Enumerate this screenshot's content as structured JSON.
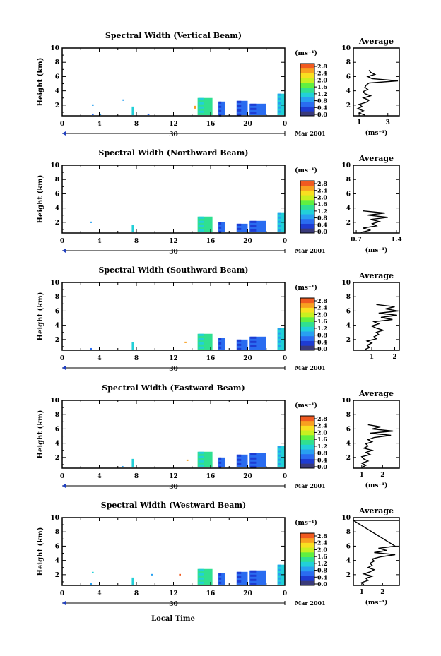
{
  "figure": {
    "xlabel": "Local Time",
    "date_label": "Mar 2001",
    "day_label": "30"
  },
  "colorbar": {
    "unit": "(ms⁻¹)",
    "tick_labels": [
      "0.0",
      "0.4",
      "0.8",
      "1.2",
      "1.6",
      "2.0",
      "2.4",
      "2.8"
    ],
    "colors": [
      "#3a3a7a",
      "#1e3cd2",
      "#2a6cf0",
      "#28a0f0",
      "#22d0d8",
      "#30e090",
      "#60f040",
      "#c8f020",
      "#f8e020",
      "#f8a020",
      "#f05a20"
    ]
  },
  "chart_data": [
    {
      "type": "heatmap",
      "title": "Spectral Width (Vertical Beam)",
      "ylabel": "Height (km)",
      "ylim": [
        0.5,
        10
      ],
      "yticks": [
        "2",
        "4",
        "6",
        "8",
        "10"
      ],
      "xlim": [
        0,
        24
      ],
      "xticks": [
        "0",
        "4",
        "8",
        "12",
        "16",
        "20",
        "0"
      ],
      "echoes": [
        {
          "t0": 3.2,
          "t1": 3.4,
          "h0": 0.6,
          "h1": 0.8,
          "level": 2
        },
        {
          "t0": 3.2,
          "t1": 3.4,
          "h0": 1.9,
          "h1": 2.1,
          "level": 3
        },
        {
          "t0": 4.0,
          "t1": 4.2,
          "h0": 0.6,
          "h1": 0.8,
          "level": 3
        },
        {
          "t0": 6.5,
          "t1": 6.7,
          "h0": 2.6,
          "h1": 2.8,
          "level": 3
        },
        {
          "t0": 7.5,
          "t1": 7.7,
          "h0": 0.6,
          "h1": 1.8,
          "level": 4
        },
        {
          "t0": 9.2,
          "t1": 9.4,
          "h0": 0.6,
          "h1": 0.8,
          "level": 2
        },
        {
          "t0": 14.2,
          "t1": 14.4,
          "h0": 1.5,
          "h1": 1.9,
          "level": 9
        },
        {
          "t0": 14.6,
          "t1": 16.2,
          "h0": 0.6,
          "h1": 3.0,
          "level": 5
        },
        {
          "t0": 16.8,
          "t1": 17.6,
          "h0": 0.6,
          "h1": 2.5,
          "level": 2
        },
        {
          "t0": 18.8,
          "t1": 20.0,
          "h0": 0.6,
          "h1": 2.6,
          "level": 2
        },
        {
          "t0": 20.2,
          "t1": 22.0,
          "h0": 0.6,
          "h1": 2.2,
          "level": 2
        },
        {
          "t0": 23.2,
          "t1": 24.0,
          "h0": 0.6,
          "h1": 3.6,
          "level": 4
        }
      ],
      "average": {
        "title": "Average",
        "xlabel": "(ms⁻¹)",
        "xlim": [
          0.6,
          3.8
        ],
        "xticks": [
          {
            "v": 1,
            "label": "1"
          },
          {
            "v": 3,
            "label": "3"
          }
        ],
        "yticks": [
          "2",
          "4",
          "6",
          "8",
          "10"
        ],
        "h": [
          0.6,
          0.9,
          1.2,
          1.5,
          1.8,
          2.1,
          2.4,
          2.7,
          3.0,
          3.3,
          3.6,
          3.9,
          4.2,
          4.5,
          4.8,
          5.1,
          5.4,
          5.7,
          6.0,
          6.3,
          6.6,
          6.9
        ],
        "v": [
          1.4,
          1.0,
          1.3,
          0.9,
          1.2,
          1.0,
          1.5,
          1.7,
          1.3,
          1.8,
          1.4,
          1.3,
          1.6,
          1.4,
          1.5,
          1.7,
          3.7,
          1.9,
          1.6,
          2.1,
          1.8,
          1.7
        ]
      }
    },
    {
      "type": "heatmap",
      "title": "Spectral Width (Northward Beam)",
      "ylabel": "Height (km)",
      "ylim": [
        0.5,
        10
      ],
      "yticks": [
        "2",
        "4",
        "6",
        "8",
        "10"
      ],
      "xlim": [
        0,
        24
      ],
      "xticks": [
        "0",
        "4",
        "8",
        "12",
        "16",
        "20",
        "0"
      ],
      "echoes": [
        {
          "t0": 3.0,
          "t1": 3.2,
          "h0": 1.9,
          "h1": 2.1,
          "level": 3
        },
        {
          "t0": 7.5,
          "t1": 7.7,
          "h0": 0.6,
          "h1": 1.6,
          "level": 4
        },
        {
          "t0": 14.6,
          "t1": 16.2,
          "h0": 0.6,
          "h1": 2.8,
          "level": 5
        },
        {
          "t0": 16.8,
          "t1": 17.6,
          "h0": 0.6,
          "h1": 2.0,
          "level": 2
        },
        {
          "t0": 18.8,
          "t1": 20.0,
          "h0": 0.6,
          "h1": 1.8,
          "level": 2
        },
        {
          "t0": 20.2,
          "t1": 22.0,
          "h0": 0.6,
          "h1": 2.2,
          "level": 2
        },
        {
          "t0": 23.2,
          "t1": 24.0,
          "h0": 0.6,
          "h1": 3.4,
          "level": 4
        }
      ],
      "average": {
        "title": "Average",
        "xlabel": "(ms⁻¹)",
        "xlim": [
          0.65,
          1.45
        ],
        "xticks": [
          {
            "v": 0.7,
            "label": "0.7"
          },
          {
            "v": 1.4,
            "label": "1.4"
          }
        ],
        "yticks": [
          "2",
          "4",
          "6",
          "8",
          "10"
        ],
        "h": [
          0.6,
          0.9,
          1.2,
          1.5,
          1.8,
          2.1,
          2.4,
          2.7,
          3.0,
          3.3,
          3.6
        ],
        "v": [
          0.78,
          0.95,
          0.82,
          1.05,
          0.98,
          1.1,
          0.95,
          1.25,
          0.9,
          1.2,
          0.82
        ]
      }
    },
    {
      "type": "heatmap",
      "title": "Spectral Width (Southward Beam)",
      "ylabel": "Height (km)",
      "ylim": [
        0.5,
        10
      ],
      "yticks": [
        "2",
        "4",
        "6",
        "8",
        "10"
      ],
      "xlim": [
        0,
        24
      ],
      "xticks": [
        "0",
        "4",
        "8",
        "12",
        "16",
        "20",
        "0"
      ],
      "echoes": [
        {
          "t0": 3.0,
          "t1": 3.2,
          "h0": 0.6,
          "h1": 0.8,
          "level": 2
        },
        {
          "t0": 7.5,
          "t1": 7.7,
          "h0": 0.6,
          "h1": 1.6,
          "level": 4
        },
        {
          "t0": 13.2,
          "t1": 13.4,
          "h0": 1.5,
          "h1": 1.7,
          "level": 9
        },
        {
          "t0": 14.6,
          "t1": 16.2,
          "h0": 0.6,
          "h1": 2.8,
          "level": 5
        },
        {
          "t0": 16.8,
          "t1": 17.6,
          "h0": 0.6,
          "h1": 2.2,
          "level": 2
        },
        {
          "t0": 18.8,
          "t1": 20.0,
          "h0": 0.6,
          "h1": 2.0,
          "level": 2
        },
        {
          "t0": 20.2,
          "t1": 22.0,
          "h0": 0.6,
          "h1": 2.4,
          "level": 2
        },
        {
          "t0": 23.2,
          "t1": 24.0,
          "h0": 0.6,
          "h1": 3.6,
          "level": 4
        }
      ],
      "average": {
        "title": "Average",
        "xlabel": "",
        "xlim": [
          0.2,
          2.2
        ],
        "xticks": [
          {
            "v": 1,
            "label": "1"
          },
          {
            "v": 2,
            "label": "2"
          }
        ],
        "yticks": [
          "2",
          "4",
          "6",
          "8",
          "10"
        ],
        "h": [
          0.6,
          0.9,
          1.2,
          1.5,
          1.8,
          2.1,
          2.4,
          2.7,
          3.0,
          3.3,
          3.6,
          3.9,
          4.2,
          4.5,
          4.8,
          5.1,
          5.4,
          5.7,
          6.0,
          6.3,
          6.6,
          6.9
        ],
        "v": [
          0.7,
          0.9,
          0.8,
          1.0,
          0.8,
          1.2,
          1.1,
          1.3,
          1.2,
          1.5,
          1.2,
          1.0,
          1.3,
          1.1,
          1.9,
          1.4,
          2.1,
          1.3,
          2.15,
          1.6,
          2.0,
          1.2
        ]
      }
    },
    {
      "type": "heatmap",
      "title": "Spectral Width (Eastward Beam)",
      "ylabel": "Height (km)",
      "ylim": [
        0.5,
        10
      ],
      "yticks": [
        "2",
        "4",
        "6",
        "8",
        "10"
      ],
      "xlim": [
        0,
        24
      ],
      "xticks": [
        "0",
        "4",
        "8",
        "12",
        "16",
        "20",
        "0"
      ],
      "echoes": [
        {
          "t0": 6.4,
          "t1": 6.6,
          "h0": 0.6,
          "h1": 0.8,
          "level": 3
        },
        {
          "t0": 7.5,
          "t1": 7.7,
          "h0": 0.6,
          "h1": 1.8,
          "level": 4
        },
        {
          "t0": 13.4,
          "t1": 13.6,
          "h0": 1.5,
          "h1": 1.7,
          "level": 9
        },
        {
          "t0": 14.6,
          "t1": 16.2,
          "h0": 0.6,
          "h1": 2.8,
          "level": 5
        },
        {
          "t0": 16.8,
          "t1": 17.6,
          "h0": 0.6,
          "h1": 2.0,
          "level": 2
        },
        {
          "t0": 18.8,
          "t1": 20.0,
          "h0": 0.6,
          "h1": 2.4,
          "level": 2
        },
        {
          "t0": 20.2,
          "t1": 22.0,
          "h0": 0.6,
          "h1": 2.6,
          "level": 2
        },
        {
          "t0": 23.2,
          "t1": 24.0,
          "h0": 0.6,
          "h1": 3.6,
          "level": 4
        }
      ],
      "average": {
        "title": "Average",
        "xlabel": "(ms⁻¹)",
        "xlim": [
          0.6,
          2.8
        ],
        "xticks": [
          {
            "v": 1,
            "label": "1"
          },
          {
            "v": 2,
            "label": "2"
          }
        ],
        "yticks": [
          "2",
          "4",
          "6",
          "8",
          "10"
        ],
        "h": [
          0.6,
          0.9,
          1.2,
          1.5,
          1.8,
          2.1,
          2.4,
          2.7,
          3.0,
          3.3,
          3.6,
          3.9,
          4.2,
          4.5,
          4.8,
          5.1,
          5.4,
          5.7,
          6.0,
          6.3,
          6.6
        ],
        "v": [
          1.0,
          1.2,
          1.0,
          1.3,
          1.1,
          1.0,
          1.4,
          1.2,
          1.5,
          1.1,
          1.3,
          1.2,
          1.5,
          1.3,
          1.6,
          2.4,
          1.4,
          2.5,
          1.5,
          1.9,
          1.3
        ]
      }
    },
    {
      "type": "heatmap",
      "title": "Spectral Width (Westward Beam)",
      "ylabel": "Height (km)",
      "ylim": [
        0.5,
        10
      ],
      "yticks": [
        "2",
        "4",
        "6",
        "8",
        "10"
      ],
      "xlim": [
        0,
        24
      ],
      "xticks": [
        "0",
        "4",
        "8",
        "12",
        "16",
        "20",
        "0"
      ],
      "echoes": [
        {
          "t0": 3.0,
          "t1": 3.2,
          "h0": 0.6,
          "h1": 0.8,
          "level": 3
        },
        {
          "t0": 3.2,
          "t1": 3.4,
          "h0": 2.2,
          "h1": 2.4,
          "level": 4
        },
        {
          "t0": 7.5,
          "t1": 7.7,
          "h0": 0.6,
          "h1": 1.6,
          "level": 4
        },
        {
          "t0": 9.6,
          "t1": 9.8,
          "h0": 1.9,
          "h1": 2.1,
          "level": 3
        },
        {
          "t0": 12.6,
          "t1": 12.8,
          "h0": 1.9,
          "h1": 2.1,
          "level": 10
        },
        {
          "t0": 14.6,
          "t1": 16.2,
          "h0": 0.6,
          "h1": 2.8,
          "level": 5
        },
        {
          "t0": 16.8,
          "t1": 17.6,
          "h0": 0.6,
          "h1": 2.2,
          "level": 2
        },
        {
          "t0": 18.8,
          "t1": 20.0,
          "h0": 0.6,
          "h1": 2.4,
          "level": 2
        },
        {
          "t0": 20.2,
          "t1": 22.0,
          "h0": 0.6,
          "h1": 2.6,
          "level": 2
        },
        {
          "t0": 23.2,
          "t1": 24.0,
          "h0": 0.6,
          "h1": 3.4,
          "level": 4
        }
      ],
      "average": {
        "title": "Average",
        "xlabel": "(ms⁻¹)",
        "xlim": [
          0.6,
          2.8
        ],
        "xticks": [
          {
            "v": 1,
            "label": "1"
          },
          {
            "v": 2,
            "label": "2"
          }
        ],
        "yticks": [
          "2",
          "4",
          "6",
          "8",
          "10"
        ],
        "h": [
          0.6,
          0.9,
          1.2,
          1.5,
          1.8,
          2.1,
          2.4,
          2.7,
          3.0,
          3.3,
          3.6,
          3.9,
          4.2,
          4.5,
          4.8,
          5.1,
          5.4,
          5.7,
          6.0,
          9.6,
          9.6
        ],
        "v": [
          1.1,
          1.0,
          1.3,
          1.2,
          1.5,
          1.1,
          1.4,
          1.6,
          1.3,
          1.5,
          1.4,
          1.6,
          1.5,
          1.9,
          2.6,
          1.6,
          2.2,
          1.8,
          2.6,
          0.6,
          2.8
        ]
      }
    }
  ]
}
